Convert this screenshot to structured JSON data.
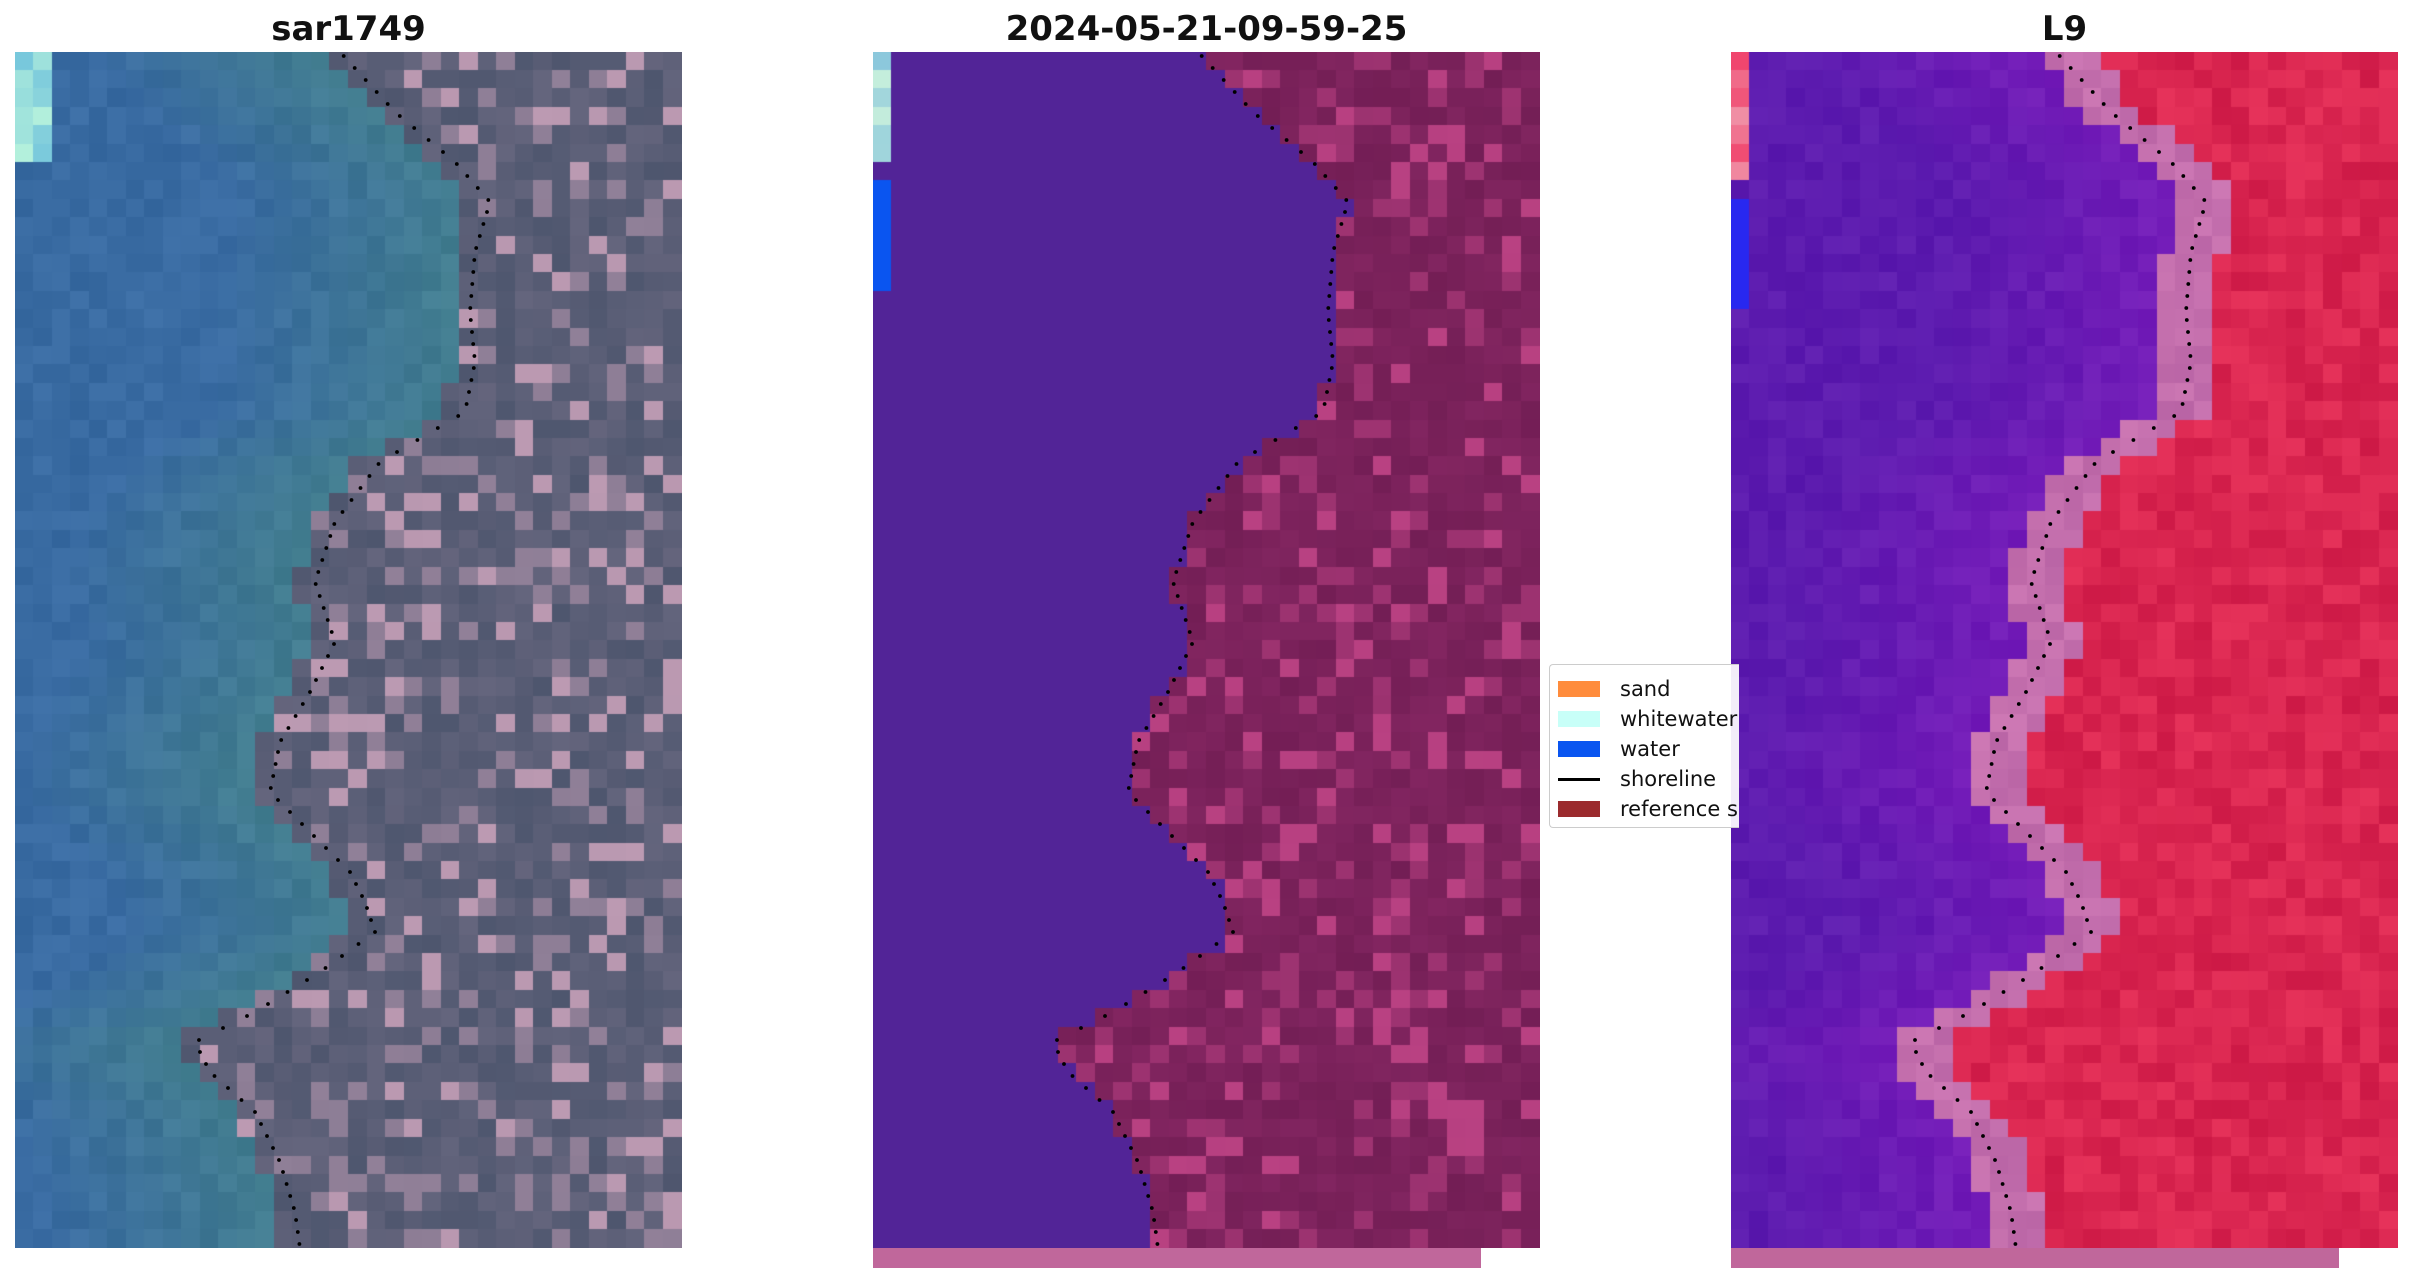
{
  "panels": [
    {
      "title": "sar1749",
      "kind": "rgb"
    },
    {
      "title": "2024-05-21-09-59-25",
      "kind": "classified"
    },
    {
      "title": "L9",
      "kind": "index"
    }
  ],
  "legend": {
    "items": [
      {
        "label": "sand",
        "color": "#ff8c3c",
        "type": "patch"
      },
      {
        "label": "whitewater",
        "color": "#c8fff8",
        "type": "patch"
      },
      {
        "label": "water",
        "color": "#0a55f0",
        "type": "patch"
      },
      {
        "label": "shoreline",
        "color": "#000000",
        "type": "line"
      },
      {
        "label": "reference s",
        "color": "#9b2b2e",
        "type": "patch"
      }
    ]
  },
  "colors": {
    "rgb_water": "#3d6f98",
    "rgb_land": "#4a5872",
    "class_water": "#522497",
    "class_land": "#7a2060",
    "class_water_patch": "#0a55f0",
    "index_water": "#5a0fa5",
    "index_land": "#d01a47",
    "strip": "#c0679b"
  }
}
